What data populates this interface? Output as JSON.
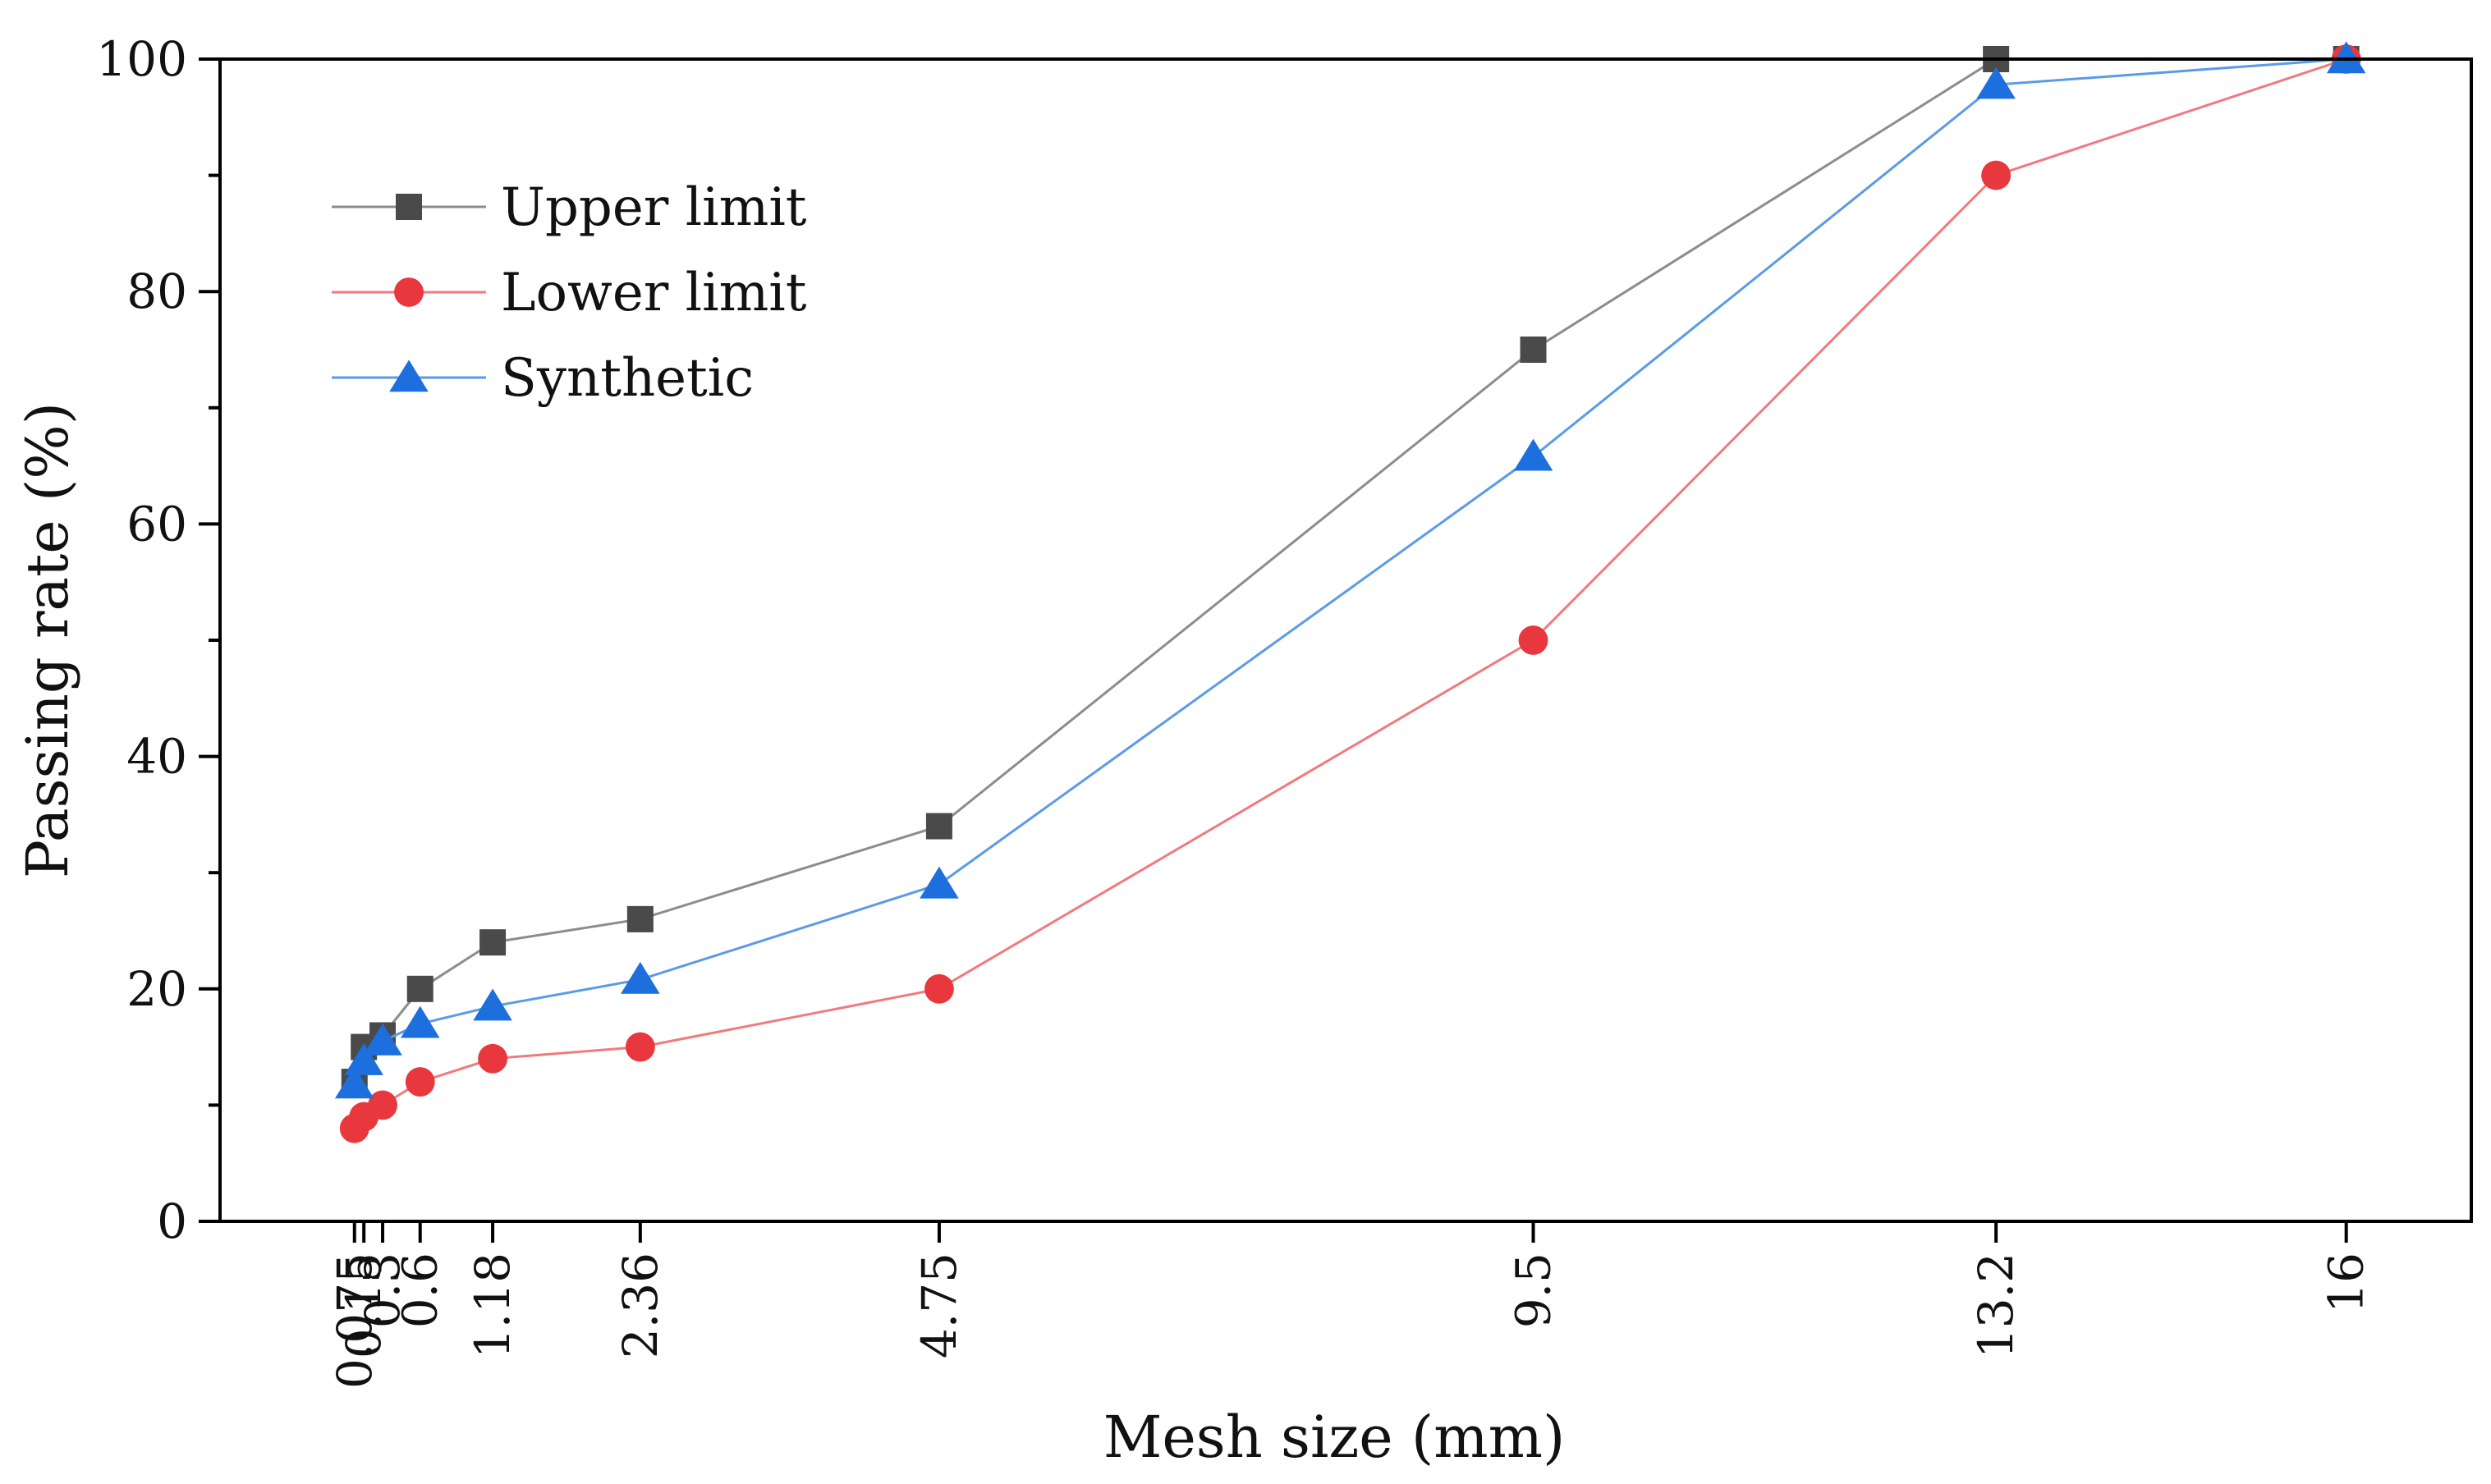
{
  "chart_data": {
    "type": "line",
    "title": "",
    "xlabel": "Mesh size (mm)",
    "ylabel": "Passing rate (%)",
    "x": [
      0.075,
      0.15,
      0.3,
      0.6,
      1.18,
      2.36,
      4.75,
      9.5,
      13.2,
      16
    ],
    "x_tick_labels": [
      "0.075",
      "0.15",
      "0.3",
      "0.6",
      "1.18",
      "2.36",
      "4.75",
      "9.5",
      "13.2",
      "16"
    ],
    "xlim": [
      -1.0,
      17.0
    ],
    "ylim": [
      0,
      100
    ],
    "y_ticks": [
      0,
      20,
      40,
      60,
      80,
      100
    ],
    "y_tick_labels": [
      "0",
      "20",
      "40",
      "60",
      "80",
      "100"
    ],
    "grid": false,
    "legend_position": "top-left",
    "series": [
      {
        "name": "Upper limit",
        "marker": "square",
        "color": "#4a4a4a",
        "line_color": "#8c8c8c",
        "values": [
          12,
          15,
          16,
          20,
          24,
          26,
          34,
          75,
          100,
          100
        ]
      },
      {
        "name": "Lower limit",
        "marker": "circle",
        "color": "#e8383d",
        "line_color": "#f07a7e",
        "values": [
          8,
          9,
          10,
          12,
          14,
          15,
          20,
          50,
          90,
          100
        ]
      },
      {
        "name": "Synthetic",
        "marker": "triangle",
        "color": "#1c6fdc",
        "line_color": "#5a9ae8",
        "values": [
          11.8,
          13.8,
          15.5,
          17,
          18.5,
          20.8,
          29,
          65.8,
          97.8,
          100
        ]
      }
    ]
  }
}
